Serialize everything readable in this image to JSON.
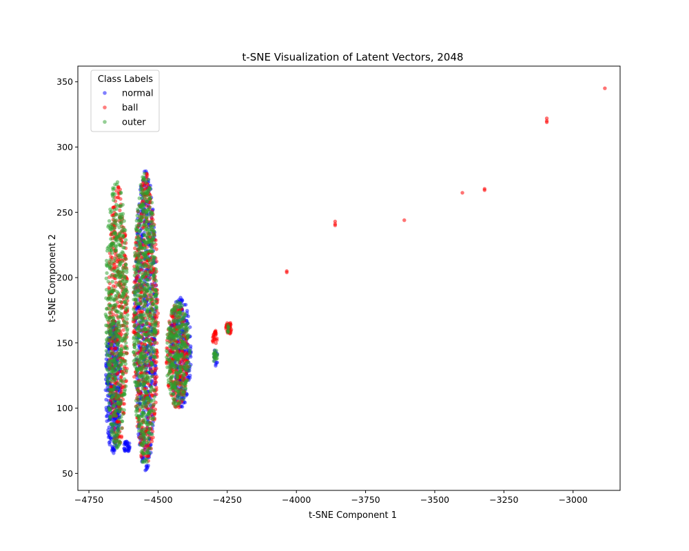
{
  "chart_data": {
    "type": "scatter",
    "title": "t-SNE Visualization of Latent Vectors, 2048",
    "xlabel": "t-SNE Component 1",
    "ylabel": "t-SNE Component 2",
    "xlim": [
      -4790,
      -2830
    ],
    "ylim": [
      37,
      362
    ],
    "x_ticks": [
      -4750,
      -4500,
      -4250,
      -4000,
      -3750,
      -3500,
      -3250,
      -3000
    ],
    "x_tick_labels": [
      "−4750",
      "−4500",
      "−4250",
      "−4000",
      "−3750",
      "−3500",
      "−3250",
      "−3000"
    ],
    "y_ticks": [
      50,
      100,
      150,
      200,
      250,
      300,
      350
    ],
    "y_tick_labels": [
      "50",
      "100",
      "150",
      "200",
      "250",
      "300",
      "350"
    ],
    "grid": false,
    "legend": {
      "title": "Class Labels",
      "placement": "top-left"
    },
    "series": [
      {
        "name": "normal",
        "color": "#0000ff",
        "clusters": [
          {
            "x": [
              -4690,
              -4635
            ],
            "y": [
              65,
              168
            ],
            "n": 380
          },
          {
            "x": [
              -4585,
              -4505
            ],
            "y": [
              52,
              282
            ],
            "n": 520
          },
          {
            "x": [
              -4460,
              -4380
            ],
            "y": [
              100,
              185
            ],
            "n": 260
          },
          {
            "x": [
              -4625,
              -4600
            ],
            "y": [
              66,
              75
            ],
            "n": 30
          },
          {
            "x": [
              -4300,
              -4285
            ],
            "y": [
              132,
              145
            ],
            "n": 12
          }
        ],
        "points": []
      },
      {
        "name": "ball",
        "color": "#ff0000",
        "clusters": [
          {
            "x": [
              -4680,
              -4610
            ],
            "y": [
              68,
              270
            ],
            "n": 420
          },
          {
            "x": [
              -4590,
              -4500
            ],
            "y": [
              55,
              280
            ],
            "n": 560
          },
          {
            "x": [
              -4470,
              -4390
            ],
            "y": [
              100,
              180
            ],
            "n": 260
          },
          {
            "x": [
              -4305,
              -4285
            ],
            "y": [
              149,
              160
            ],
            "n": 25
          },
          {
            "x": [
              -4255,
              -4235
            ],
            "y": [
              156,
              167
            ],
            "n": 35
          }
        ],
        "points": [
          [
            -4035,
            205
          ],
          [
            -4035,
            204
          ],
          [
            -3860,
            243
          ],
          [
            -3860,
            241
          ],
          [
            -3860,
            240
          ],
          [
            -3610,
            244
          ],
          [
            -3400,
            265
          ],
          [
            -3320,
            268
          ],
          [
            -3320,
            267
          ],
          [
            -3095,
            322
          ],
          [
            -3095,
            320
          ],
          [
            -3095,
            319
          ],
          [
            -2885,
            345
          ]
        ]
      },
      {
        "name": "outer",
        "color": "#2ca02c",
        "clusters": [
          {
            "x": [
              -4690,
              -4610
            ],
            "y": [
              68,
              276
            ],
            "n": 560
          },
          {
            "x": [
              -4590,
              -4505
            ],
            "y": [
              55,
              280
            ],
            "n": 700
          },
          {
            "x": [
              -4470,
              -4385
            ],
            "y": [
              100,
              182
            ],
            "n": 320
          },
          {
            "x": [
              -4300,
              -4285
            ],
            "y": [
              133,
              145
            ],
            "n": 20
          },
          {
            "x": [
              -4250,
              -4240
            ],
            "y": [
              157,
              165
            ],
            "n": 8
          }
        ],
        "points": []
      }
    ]
  }
}
